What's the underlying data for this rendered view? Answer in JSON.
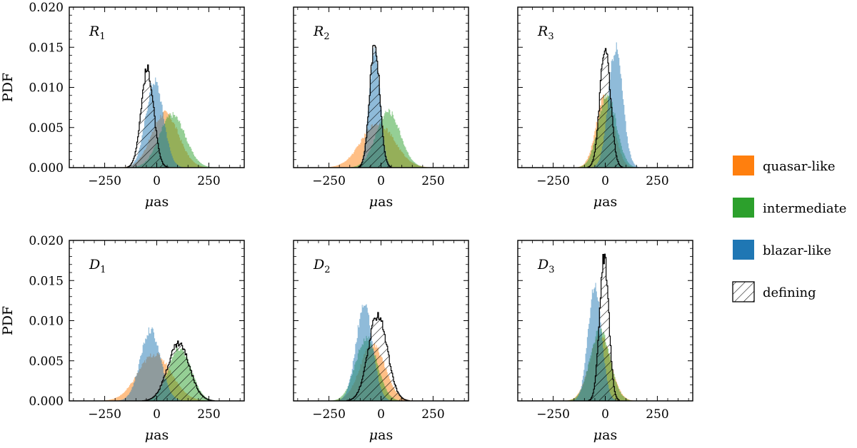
{
  "chart_data": {
    "type": "histogram",
    "x_unit": "μas",
    "xlim": [
      -420,
      420
    ],
    "ylim": [
      0,
      0.02
    ],
    "x_ticks": [
      -250,
      0,
      250
    ],
    "y_ticks": [
      "0.000",
      "0.005",
      "0.010",
      "0.015",
      "0.020"
    ],
    "xlabel_prefix": "μ",
    "xlabel_suffix": "as",
    "ylabel": "PDF",
    "legend": [
      {
        "key": "quasar",
        "label": "quasar-like",
        "color": "#ff7f0e"
      },
      {
        "key": "intermediate",
        "label": "intermediate",
        "color": "#2ca02c"
      },
      {
        "key": "blazar",
        "label": "blazar-like",
        "color": "#1f77b4"
      },
      {
        "key": "defining",
        "label": "defining",
        "color": "#000000"
      }
    ],
    "panels": [
      {
        "label": "R",
        "sub": "1",
        "series": {
          "quasar": {
            "mean": 40,
            "sd": 65,
            "peak": 0.0068
          },
          "intermediate": {
            "mean": 75,
            "sd": 62,
            "peak": 0.0066
          },
          "blazar": {
            "mean": -10,
            "sd": 42,
            "peak": 0.0108
          },
          "defining": {
            "mean": -45,
            "sd": 30,
            "peak": 0.0122
          }
        }
      },
      {
        "label": "R",
        "sub": "2",
        "series": {
          "quasar": {
            "mean": -15,
            "sd": 80,
            "peak": 0.0055
          },
          "intermediate": {
            "mean": 35,
            "sd": 58,
            "peak": 0.007
          },
          "blazar": {
            "mean": -30,
            "sd": 26,
            "peak": 0.015
          },
          "defining": {
            "mean": -30,
            "sd": 24,
            "peak": 0.0155
          }
        }
      },
      {
        "label": "R",
        "sub": "3",
        "series": {
          "quasar": {
            "mean": 0,
            "sd": 42,
            "peak": 0.009
          },
          "intermediate": {
            "mean": 10,
            "sd": 44,
            "peak": 0.009
          },
          "blazar": {
            "mean": 50,
            "sd": 34,
            "peak": 0.015
          },
          "defining": {
            "mean": 0,
            "sd": 25,
            "peak": 0.0152
          }
        }
      },
      {
        "label": "D",
        "sub": "1",
        "series": {
          "quasar": {
            "mean": -10,
            "sd": 80,
            "peak": 0.0058
          },
          "intermediate": {
            "mean": 110,
            "sd": 55,
            "peak": 0.0065
          },
          "blazar": {
            "mean": -30,
            "sd": 48,
            "peak": 0.0088
          },
          "defining": {
            "mean": 105,
            "sd": 52,
            "peak": 0.0072
          }
        }
      },
      {
        "label": "D",
        "sub": "2",
        "series": {
          "quasar": {
            "mean": -40,
            "sd": 60,
            "peak": 0.007
          },
          "intermediate": {
            "mean": -70,
            "sd": 52,
            "peak": 0.0078
          },
          "blazar": {
            "mean": -80,
            "sd": 40,
            "peak": 0.0118
          },
          "defining": {
            "mean": -15,
            "sd": 45,
            "peak": 0.0108
          }
        }
      },
      {
        "label": "D",
        "sub": "3",
        "series": {
          "quasar": {
            "mean": -25,
            "sd": 50,
            "peak": 0.0082
          },
          "intermediate": {
            "mean": -25,
            "sd": 48,
            "peak": 0.0088
          },
          "blazar": {
            "mean": -50,
            "sd": 32,
            "peak": 0.0145
          },
          "defining": {
            "mean": -5,
            "sd": 22,
            "peak": 0.018
          }
        }
      }
    ]
  }
}
